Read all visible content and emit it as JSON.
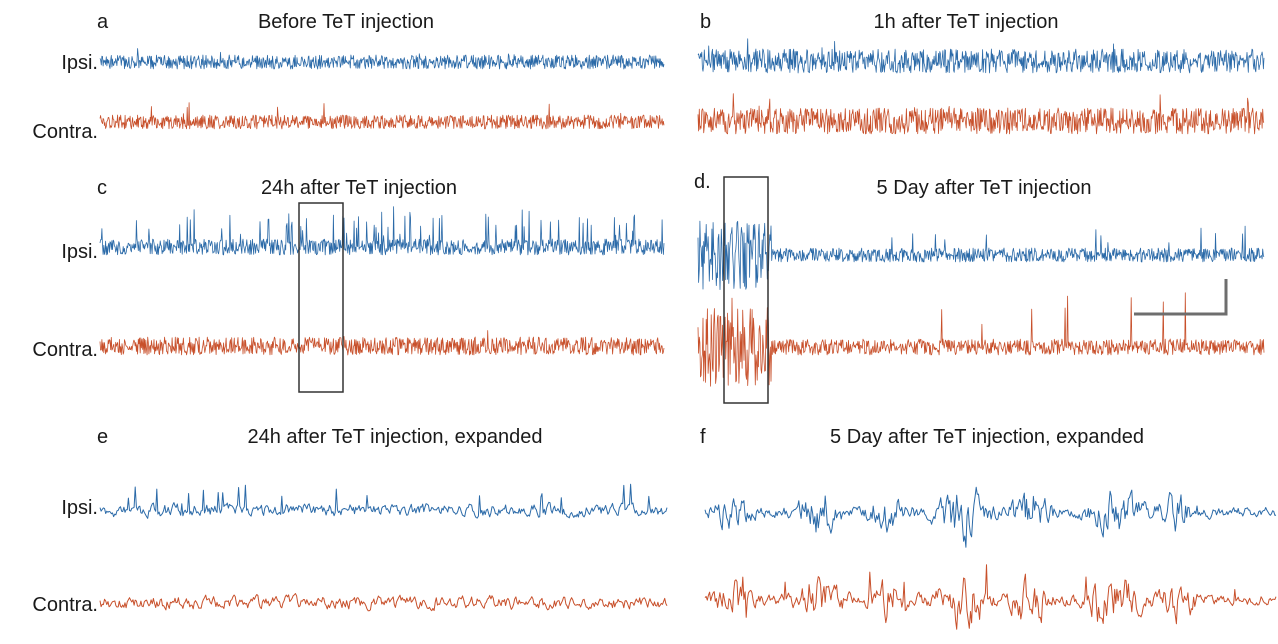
{
  "colors": {
    "ipsi": "#2b6aa8",
    "contra": "#c8502b"
  },
  "trace_labels": {
    "ipsi": "Ipsi.",
    "contra": "Contra."
  },
  "chart_data": [
    {
      "panel": "a",
      "title": "Before TeT injection",
      "type": "line",
      "series": [
        {
          "name": "Ipsi.",
          "color": "#2b6aa8",
          "activity": "baseline noise, occasional small spikes"
        },
        {
          "name": "Contra.",
          "color": "#c8502b",
          "activity": "baseline noise, occasional small spikes"
        }
      ]
    },
    {
      "panel": "b",
      "title": "1h after TeT injection",
      "type": "line",
      "series": [
        {
          "name": "Ipsi.",
          "color": "#2b6aa8",
          "activity": "increased amplitude noise"
        },
        {
          "name": "Contra.",
          "color": "#c8502b",
          "activity": "increased amplitude noise"
        }
      ]
    },
    {
      "panel": "c",
      "title": "24h after TeT injection",
      "type": "line",
      "highlight_box": "expanded in panel e",
      "series": [
        {
          "name": "Ipsi.",
          "color": "#2b6aa8",
          "activity": "frequent interictal spikes"
        },
        {
          "name": "Contra.",
          "color": "#c8502b",
          "activity": "baseline noise"
        }
      ]
    },
    {
      "panel": "d.",
      "title": "5 Day after TeT injection",
      "type": "line",
      "highlight_box": "expanded in panel f",
      "scale_bar": true,
      "series": [
        {
          "name": "Ipsi.",
          "color": "#2b6aa8",
          "activity": "burst discharge at onset, then spikes"
        },
        {
          "name": "Contra.",
          "color": "#c8502b",
          "activity": "burst discharge at onset, large spikes"
        }
      ]
    },
    {
      "panel": "e",
      "title": "24h after TeT injection, expanded",
      "type": "line",
      "series": [
        {
          "name": "Ipsi.",
          "color": "#2b6aa8",
          "activity": "regular spikes"
        },
        {
          "name": "Contra.",
          "color": "#c8502b",
          "activity": "noise"
        }
      ]
    },
    {
      "panel": "f",
      "title": "5 Day after TeT injection, expanded",
      "type": "line",
      "series": [
        {
          "name": "Ipsi.",
          "color": "#2b6aa8",
          "activity": "oscillatory bursts"
        },
        {
          "name": "Contra.",
          "color": "#c8502b",
          "activity": "oscillatory bursts with large spikes"
        }
      ]
    }
  ]
}
